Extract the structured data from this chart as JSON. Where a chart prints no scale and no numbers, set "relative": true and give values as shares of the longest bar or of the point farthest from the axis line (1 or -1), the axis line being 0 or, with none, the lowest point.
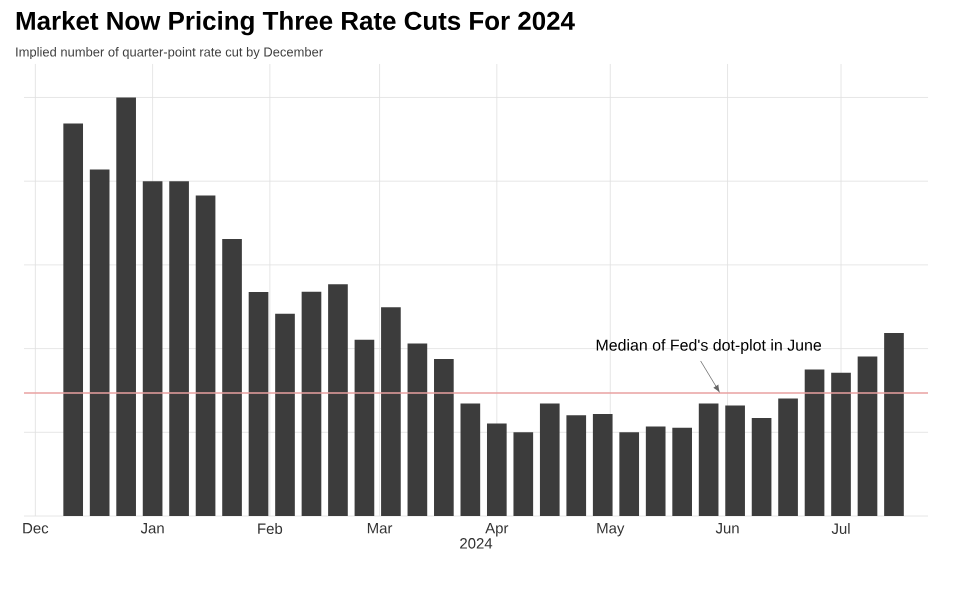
{
  "chart_data": {
    "type": "bar",
    "title": "Market Now Pricing Three Rate Cuts For 2024",
    "subtitle": "Implied number of quarter-point rate cut by December",
    "xlabel": "2024",
    "relative": true,
    "grid": true,
    "x": [
      "2023-12-11",
      "2023-12-18",
      "2023-12-25",
      "2024-01-01",
      "2024-01-08",
      "2024-01-15",
      "2024-01-22",
      "2024-01-29",
      "2024-02-05",
      "2024-02-12",
      "2024-02-19",
      "2024-02-26",
      "2024-03-04",
      "2024-03-11",
      "2024-03-18",
      "2024-03-25",
      "2024-04-01",
      "2024-04-08",
      "2024-04-15",
      "2024-04-22",
      "2024-04-29",
      "2024-05-06",
      "2024-05-13",
      "2024-05-20",
      "2024-05-27",
      "2024-06-03",
      "2024-06-10",
      "2024-06-17",
      "2024-06-24",
      "2024-07-01",
      "2024-07-08",
      "2024-07-15"
    ],
    "values": [
      0.938,
      0.828,
      1,
      0.8,
      0.8,
      0.766,
      0.662,
      0.535,
      0.483,
      0.536,
      0.554,
      0.421,
      0.499,
      0.412,
      0.375,
      0.269,
      0.221,
      0.2,
      0.269,
      0.241,
      0.244,
      0.2,
      0.214,
      0.211,
      0.269,
      0.264,
      0.234,
      0.281,
      0.35,
      0.342,
      0.381,
      0.437
    ],
    "color": "#3c3c3c",
    "xlim": [
      "2023-11-28",
      "2024-07-24"
    ],
    "xticks": [
      {
        "value": "2023-12-01",
        "label": "Dec"
      },
      {
        "value": "2024-01-01",
        "label": "Jan"
      },
      {
        "value": "2024-02-01",
        "label": "Feb"
      },
      {
        "value": "2024-03-01",
        "label": "Mar"
      },
      {
        "value": "2024-04-01",
        "label": "Apr"
      },
      {
        "value": "2024-05-01",
        "label": "May"
      },
      {
        "value": "2024-06-01",
        "label": "Jun"
      },
      {
        "value": "2024-07-01",
        "label": "Jul"
      }
    ],
    "ref_lines": [
      {
        "axis": "y",
        "value": 0.294,
        "label": "Median of Fed's dot-plot in June",
        "color": "#e8a0a0"
      }
    ]
  }
}
